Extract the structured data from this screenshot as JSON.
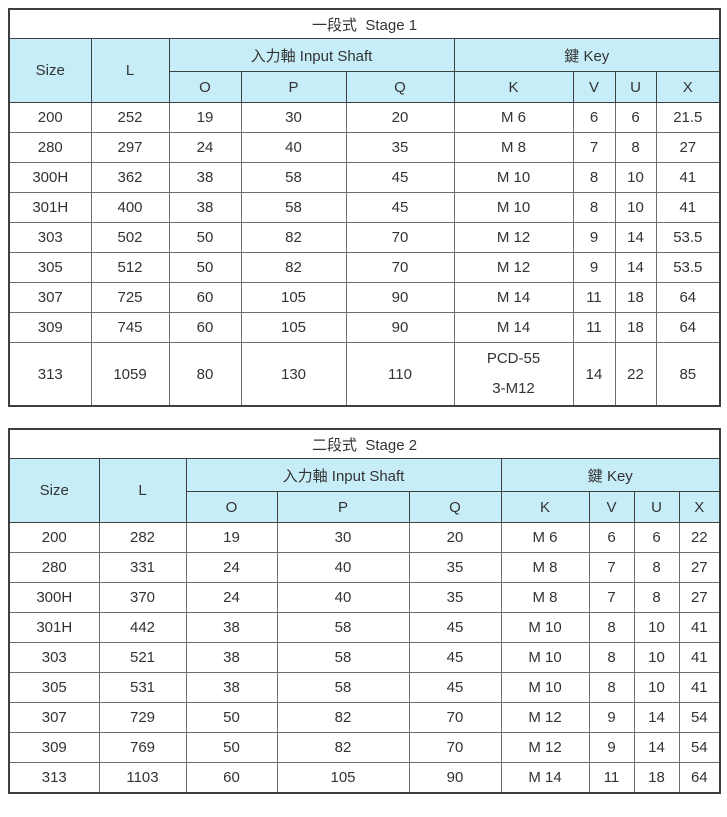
{
  "columns": {
    "size": "Size",
    "l": "L",
    "input_shaft_group": "入力軸 Input Shaft",
    "key_group": "鍵 Key",
    "o": "O",
    "p": "P",
    "q": "Q",
    "k": "K",
    "v": "V",
    "u": "U",
    "x": "X"
  },
  "tables": [
    {
      "title": "一段式  Stage 1",
      "rows": [
        [
          "200",
          "252",
          "19",
          "30",
          "20",
          "M 6",
          "6",
          "6",
          "21.5"
        ],
        [
          "280",
          "297",
          "24",
          "40",
          "35",
          "M 8",
          "7",
          "8",
          "27"
        ],
        [
          "300H",
          "362",
          "38",
          "58",
          "45",
          "M 10",
          "8",
          "10",
          "41"
        ],
        [
          "301H",
          "400",
          "38",
          "58",
          "45",
          "M 10",
          "8",
          "10",
          "41"
        ],
        [
          "303",
          "502",
          "50",
          "82",
          "70",
          "M 12",
          "9",
          "14",
          "53.5"
        ],
        [
          "305",
          "512",
          "50",
          "82",
          "70",
          "M 12",
          "9",
          "14",
          "53.5"
        ],
        [
          "307",
          "725",
          "60",
          "105",
          "90",
          "M 14",
          "11",
          "18",
          "64"
        ],
        [
          "309",
          "745",
          "60",
          "105",
          "90",
          "M 14",
          "11",
          "18",
          "64"
        ],
        [
          "313",
          "1059",
          "80",
          "130",
          "110",
          "PCD-55\n3-M12",
          "14",
          "22",
          "85"
        ]
      ]
    },
    {
      "title": "二段式  Stage 2",
      "rows": [
        [
          "200",
          "282",
          "19",
          "30",
          "20",
          "M 6",
          "6",
          "6",
          "22"
        ],
        [
          "280",
          "331",
          "24",
          "40",
          "35",
          "M 8",
          "7",
          "8",
          "27"
        ],
        [
          "300H",
          "370",
          "24",
          "40",
          "35",
          "M 8",
          "7",
          "8",
          "27"
        ],
        [
          "301H",
          "442",
          "38",
          "58",
          "45",
          "M 10",
          "8",
          "10",
          "41"
        ],
        [
          "303",
          "521",
          "38",
          "58",
          "45",
          "M 10",
          "8",
          "10",
          "41"
        ],
        [
          "305",
          "531",
          "38",
          "58",
          "45",
          "M 10",
          "8",
          "10",
          "41"
        ],
        [
          "307",
          "729",
          "50",
          "82",
          "70",
          "M 12",
          "9",
          "14",
          "54"
        ],
        [
          "309",
          "769",
          "50",
          "82",
          "70",
          "M 12",
          "9",
          "14",
          "54"
        ],
        [
          "313",
          "1103",
          "60",
          "105",
          "90",
          "M 14",
          "11",
          "18",
          "64"
        ]
      ]
    }
  ],
  "colors": {
    "header_bg": "#c7eef8",
    "outer_border": "#3f3f3f",
    "inner_border": "#6e6e6e",
    "text": "#333333"
  }
}
